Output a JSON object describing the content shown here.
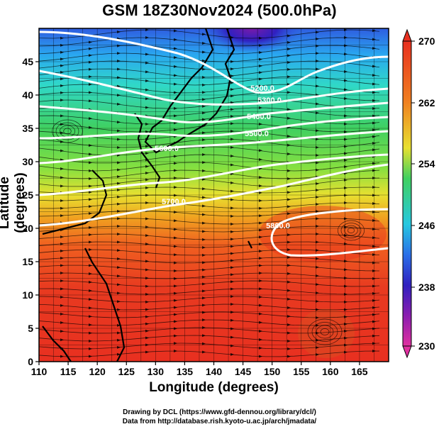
{
  "title": "GSM 18Z30Nov2024 (500.0hPa)",
  "x_axis": {
    "label": "Longitude (degrees)",
    "ticks": [
      "110",
      "115",
      "120",
      "125",
      "130",
      "135",
      "140",
      "145",
      "150",
      "155",
      "160",
      "165"
    ]
  },
  "y_axis": {
    "label": "Latitude  (degrees)",
    "ticks": [
      "0",
      "5",
      "10",
      "15",
      "20",
      "25",
      "30",
      "35",
      "40",
      "45"
    ]
  },
  "colorbar": {
    "ticks": [
      "270",
      "262",
      "254",
      "246",
      "238",
      "230"
    ],
    "colors": [
      "#e0307a",
      "#8a1db0",
      "#3020c0",
      "#2a50e0",
      "#26a8f0",
      "#30d8c8",
      "#40d070",
      "#80e040",
      "#e8e030",
      "#f0a020",
      "#f06020",
      "#e83020"
    ]
  },
  "contours": [
    {
      "label": "5200.0"
    },
    {
      "label": "5300.0"
    },
    {
      "label": "5400.0"
    },
    {
      "label": "5500.0"
    },
    {
      "label": "5600.0"
    },
    {
      "label": "5700.0"
    },
    {
      "label": "5800.0"
    }
  ],
  "credits": {
    "line1": "Drawing by DCL (https://www.gfd-dennou.org/library/dcl/)",
    "line2": "Data from http://database.rish.kyoto-u.ac.jp/arch/jmadata/"
  }
}
